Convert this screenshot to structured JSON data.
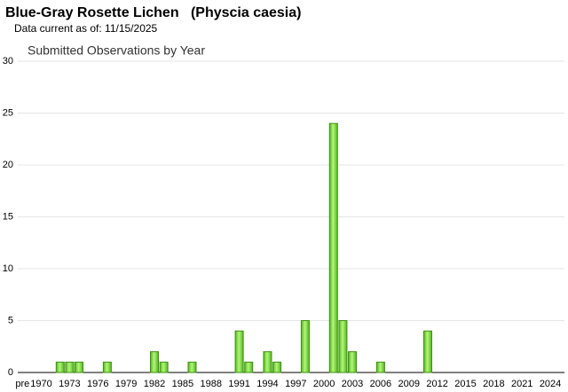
{
  "header": {
    "title": "Blue-Gray Rosette Lichen   (Physcia caesia)",
    "subtitle": "Data current as of: 11/15/2025"
  },
  "chart_data": {
    "type": "bar",
    "title": "Submitted Observations by Year",
    "categories": [
      "pre",
      null,
      "1970",
      null,
      null,
      "1973",
      null,
      null,
      "1976",
      null,
      null,
      "1979",
      null,
      null,
      "1982",
      null,
      null,
      "1985",
      null,
      null,
      "1988",
      null,
      null,
      "1991",
      null,
      null,
      "1994",
      null,
      null,
      "1997",
      null,
      null,
      "2000",
      null,
      null,
      "2003",
      null,
      null,
      "2006",
      null,
      null,
      "2009",
      null,
      null,
      "2012",
      null,
      null,
      "2015",
      null,
      null,
      "2018",
      null,
      null,
      "2021",
      null,
      null,
      "2024",
      null
    ],
    "values": [
      0,
      0,
      0,
      0,
      1,
      1,
      1,
      0,
      0,
      1,
      0,
      0,
      0,
      0,
      2,
      1,
      0,
      0,
      1,
      0,
      0,
      0,
      0,
      4,
      1,
      0,
      2,
      1,
      0,
      0,
      5,
      0,
      0,
      24,
      5,
      2,
      0,
      0,
      1,
      0,
      0,
      0,
      0,
      4,
      0,
      0,
      0,
      0,
      0,
      0,
      0,
      0,
      0,
      0,
      0,
      0,
      0,
      0
    ],
    "color": "#7ddc3a",
    "ylim": [
      0,
      30
    ],
    "yticks": [
      0,
      5,
      10,
      15,
      20,
      25,
      30
    ],
    "grid": true
  }
}
